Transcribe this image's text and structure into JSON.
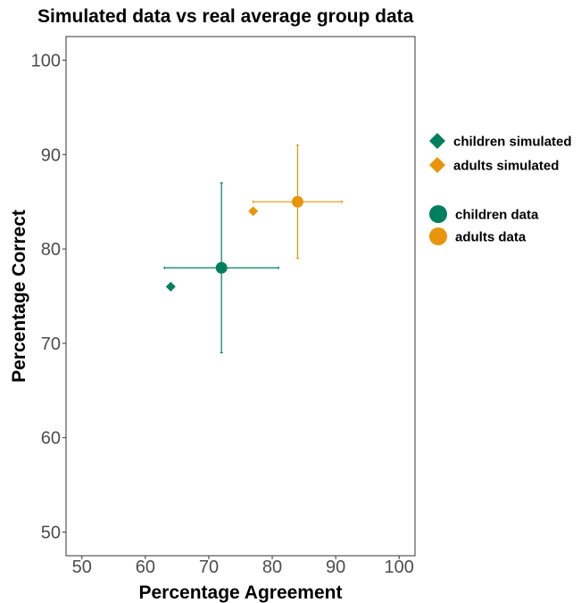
{
  "chart_data": {
    "type": "scatter",
    "title": "Simulated data vs real average group data",
    "xlabel": "Percentage Agreement",
    "ylabel": "Percentage Correct",
    "xlim": [
      47.5,
      102.5
    ],
    "ylim": [
      47.5,
      102.5
    ],
    "xticks": [
      "50",
      "60",
      "70",
      "80",
      "90",
      "100"
    ],
    "yticks": [
      "50",
      "60",
      "70",
      "80",
      "90",
      "100"
    ],
    "grid": false,
    "legend_position": "right",
    "series": [
      {
        "name": "children simulated",
        "shape": "diamond",
        "color": "#007f5f",
        "points": [
          {
            "x": 64,
            "y": 76
          }
        ]
      },
      {
        "name": "adults simulated",
        "shape": "diamond",
        "color": "#e8950c",
        "points": [
          {
            "x": 77,
            "y": 84
          }
        ]
      },
      {
        "name": "children data",
        "shape": "circle",
        "color": "#007f5f",
        "points": [
          {
            "x": 72,
            "y": 78,
            "x_err": [
              63,
              81
            ],
            "y_err": [
              69,
              87
            ]
          }
        ]
      },
      {
        "name": "adults data",
        "shape": "circle",
        "color": "#e8950c",
        "points": [
          {
            "x": 84,
            "y": 85,
            "x_err": [
              77,
              91
            ],
            "y_err": [
              79,
              91
            ]
          }
        ]
      }
    ]
  }
}
